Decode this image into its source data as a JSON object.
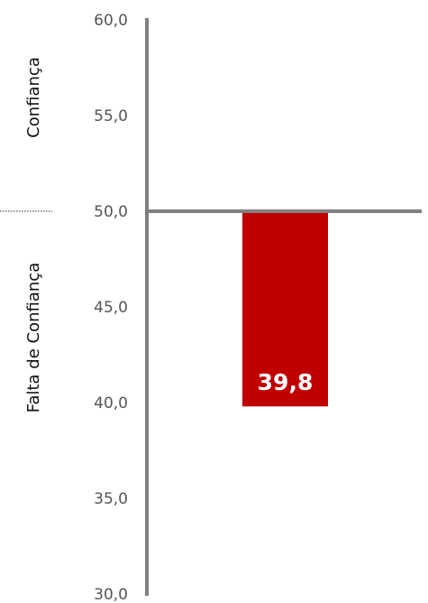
{
  "chart_data": {
    "type": "bar",
    "categories": [
      ""
    ],
    "values": [
      39.8
    ],
    "value_labels": [
      "39,8"
    ],
    "baseline": 50.0,
    "ylim": [
      30.0,
      60.0
    ],
    "yticks": [
      60.0,
      55.0,
      50.0,
      45.0,
      40.0,
      35.0,
      30.0
    ],
    "ytick_labels": [
      "60,0",
      "55,0",
      "50,0",
      "45,0",
      "40,0",
      "35,0",
      "30,0"
    ],
    "zone_labels": {
      "upper": "Confiança",
      "lower": "Falta de Confiança"
    },
    "grid": false,
    "legend": "none",
    "colors": {
      "bar": "#c00000",
      "axis": "#808080",
      "divider": "#555555",
      "tick_text": "#555555"
    }
  }
}
